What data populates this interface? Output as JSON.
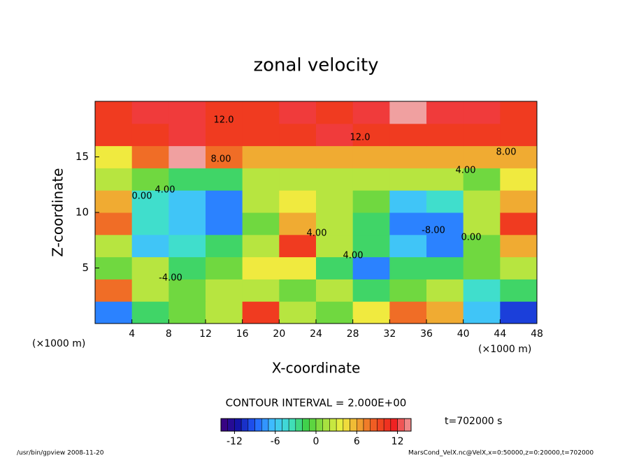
{
  "chart_data": {
    "type": "contour",
    "title": "zonal velocity",
    "xlabel": "X-coordinate",
    "ylabel": "Z-coordinate",
    "x_unit": "(×1000 m)",
    "xlim": [
      0,
      48
    ],
    "ylim": [
      0,
      20
    ],
    "xticks": [
      4,
      8,
      12,
      16,
      20,
      24,
      28,
      32,
      36,
      40,
      44,
      48
    ],
    "yticks": [
      5,
      10,
      15
    ],
    "x": [
      2,
      6,
      10,
      14,
      18,
      22,
      26,
      30,
      34,
      38,
      42,
      46
    ],
    "z": [
      1,
      3,
      5,
      7,
      9,
      11,
      13,
      15,
      17,
      19
    ],
    "values": [
      [
        -8,
        -2,
        0,
        2,
        10,
        2,
        0,
        4,
        8,
        6,
        -6,
        -10
      ],
      [
        8,
        2,
        0,
        2,
        2,
        0,
        2,
        -2,
        0,
        2,
        -4,
        -2
      ],
      [
        0,
        2,
        -2,
        0,
        4,
        4,
        -2,
        -8,
        -2,
        -2,
        0,
        2
      ],
      [
        2,
        -6,
        -4,
        -2,
        2,
        10,
        2,
        -2,
        -6,
        -8,
        0,
        6
      ],
      [
        8,
        -4,
        -6,
        -8,
        0,
        6,
        2,
        -2,
        -8,
        -8,
        2,
        10
      ],
      [
        6,
        -4,
        -6,
        -8,
        2,
        4,
        2,
        0,
        -6,
        -4,
        2,
        6
      ],
      [
        2,
        0,
        -2,
        -2,
        2,
        2,
        2,
        2,
        2,
        2,
        0,
        4
      ],
      [
        4,
        8,
        14,
        8,
        6,
        6,
        6,
        6,
        6,
        6,
        6,
        6
      ],
      [
        10,
        10,
        12,
        10,
        10,
        10,
        12,
        10,
        10,
        10,
        10,
        10
      ],
      [
        10,
        12,
        12,
        10,
        10,
        12,
        10,
        12,
        14,
        12,
        12,
        10
      ]
    ],
    "clim": [
      -14,
      14
    ],
    "colormap": [
      "#40007a",
      "#1414a8",
      "#2060ff",
      "#40c0ff",
      "#40e0c8",
      "#40d040",
      "#a0e040",
      "#f0f040",
      "#f0a030",
      "#f05020",
      "#f02020",
      "#f0a0a0"
    ],
    "colorbar_ticks": [
      -12,
      -6,
      0,
      6,
      12
    ],
    "contour_labels": [
      "12.0",
      "12.0",
      "8.00",
      "8.00",
      "4.00",
      "4.00",
      "0.00",
      "4.00",
      "-8.00",
      "4.00",
      "0.00",
      "-4.00"
    ],
    "contour_interval": "CONTOUR INTERVAL = 2.000E+00",
    "time": "t=702000 s",
    "footer_left": "/usr/bin/gpview   2008-11-20",
    "footer_right": "MarsCond_VelX.nc@VelX,x=0:50000,z=0:20000,t=702000"
  }
}
